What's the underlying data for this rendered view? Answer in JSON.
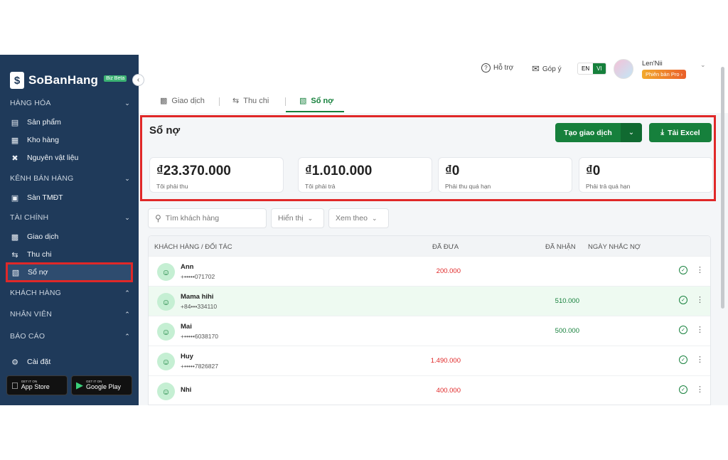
{
  "sidebar": {
    "logo": {
      "text": "SoBanHang",
      "badge": "Biz Beta"
    },
    "sections": [
      {
        "label": "HÀNG HÓA",
        "items": [
          {
            "label": "Sản phẩm",
            "icon": "box-icon"
          },
          {
            "label": "Kho hàng",
            "icon": "warehouse-icon"
          },
          {
            "label": "Nguyên vật liệu",
            "icon": "tools-icon"
          }
        ]
      },
      {
        "label": "KÊNH BÁN HÀNG",
        "items": [
          {
            "label": "Sàn TMĐT",
            "icon": "store-icon"
          }
        ]
      },
      {
        "label": "TÀI CHÍNH",
        "items": [
          {
            "label": "Giao dịch",
            "icon": "cash-icon"
          },
          {
            "label": "Thu chi",
            "icon": "exchange-icon"
          },
          {
            "label": "Sổ nợ",
            "icon": "ledger-icon"
          }
        ]
      },
      {
        "label": "KHÁCH HÀNG"
      },
      {
        "label": "NHÂN VIÊN"
      },
      {
        "label": "BÁO CÁO"
      }
    ],
    "settings": "Cài đặt",
    "appstore": {
      "small": "GET IT ON",
      "label": "App Store"
    },
    "googleplay": {
      "small": "GET IT ON",
      "label": "Google Play"
    }
  },
  "topbar": {
    "support": "Hỗ trợ",
    "feedback": "Góp ý",
    "lang_en": "EN",
    "lang_vi": "VI",
    "user_name": "Len'Nii",
    "user_plan": "Phiên bản Pro ›"
  },
  "tabs": [
    {
      "label": "Giao dịch"
    },
    {
      "label": "Thu chi"
    },
    {
      "label": "Sổ nợ"
    }
  ],
  "summary": {
    "title": "Sổ nợ",
    "create_button": "Tạo giao dịch",
    "excel_button": "Tải Excel",
    "cards": [
      {
        "value": "₫23.370.000",
        "label": "Tôi phải thu"
      },
      {
        "value": "₫1.010.000",
        "label": "Tôi phải trả"
      },
      {
        "value": "₫0",
        "label": "Phải thu quá hạn"
      },
      {
        "value": "₫0",
        "label": "Phải trả quá hạn"
      }
    ]
  },
  "filters": {
    "search_placeholder": "Tìm khách hàng",
    "display": "Hiển thị",
    "view_by": "Xem theo"
  },
  "table": {
    "headers": {
      "customer": "KHÁCH HÀNG / ĐỐI TÁC",
      "given": "ĐÃ ĐƯA",
      "received": "ĐÃ NHẬN",
      "reminder": "NGÀY NHẮC NỢ"
    },
    "rows": [
      {
        "name": "Ann",
        "phone": "+•••••071702",
        "given": "200.000",
        "received": ""
      },
      {
        "name": "Mama hihi",
        "phone": "+84•••334110",
        "given": "",
        "received": "510.000"
      },
      {
        "name": "Mai",
        "phone": "+•••••6038170",
        "given": "",
        "received": "500.000"
      },
      {
        "name": "Huy",
        "phone": "+•••••7826827",
        "given": "1.490.000",
        "received": ""
      },
      {
        "name": "Nhi",
        "phone": "",
        "given": "400.000",
        "received": ""
      }
    ]
  }
}
